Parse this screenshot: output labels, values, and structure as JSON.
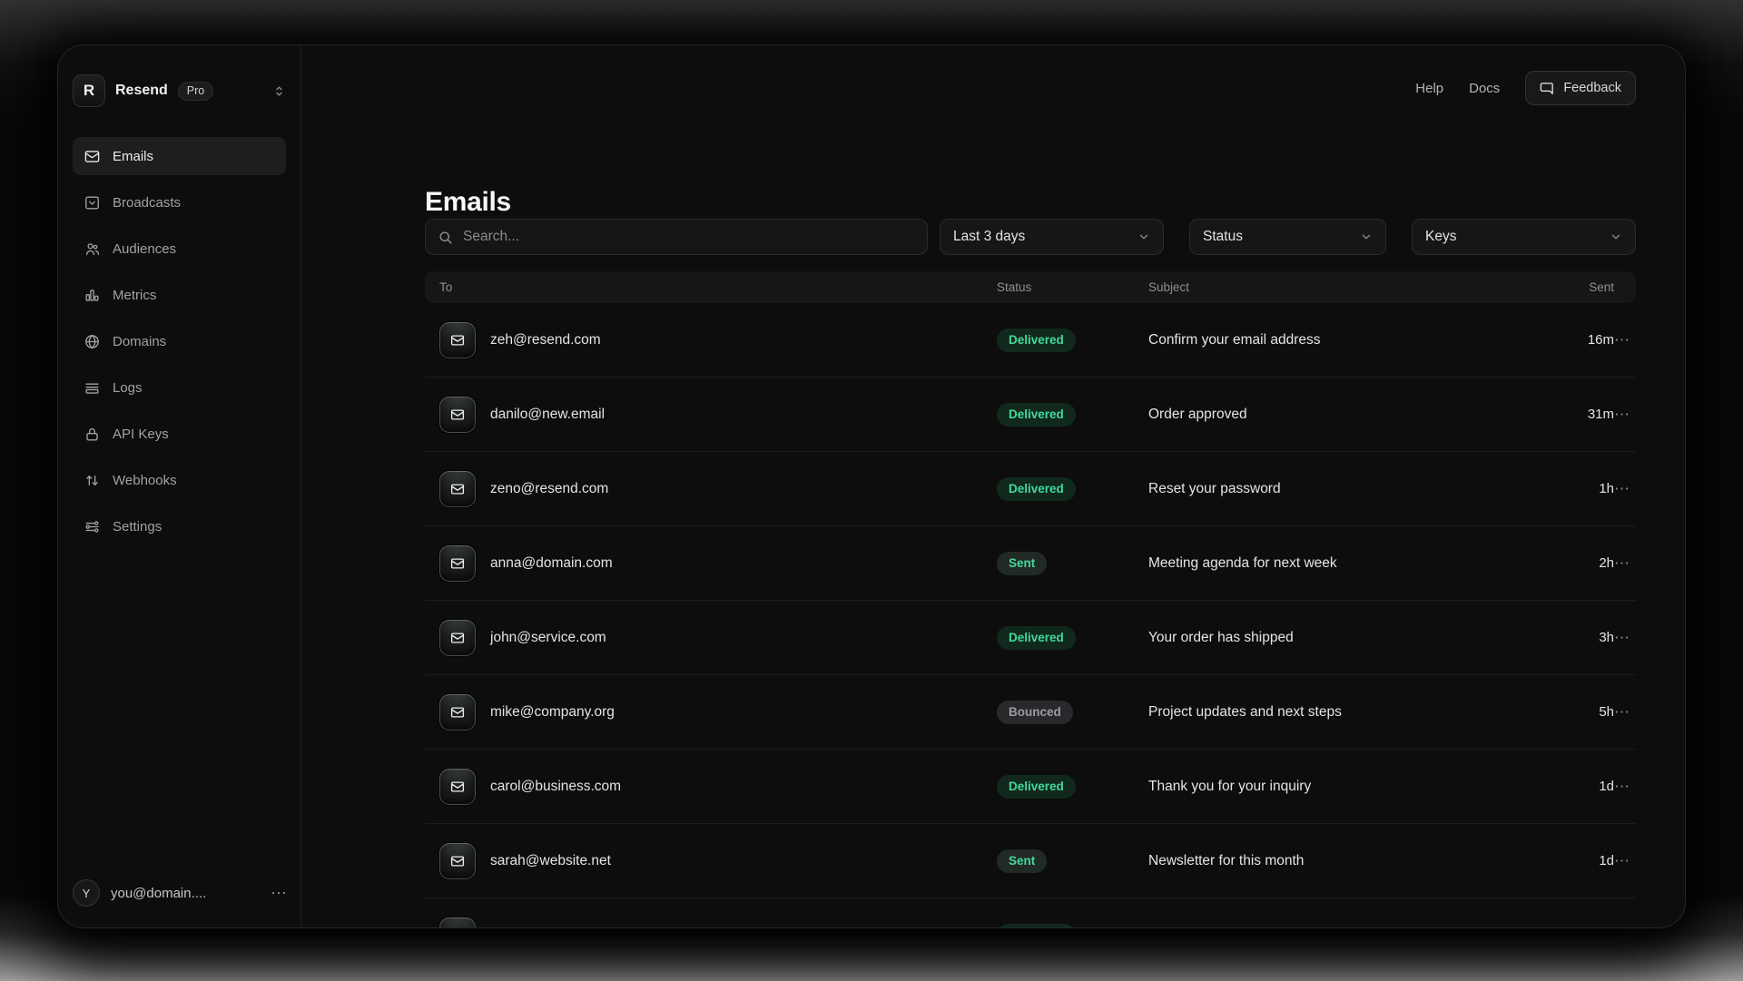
{
  "brand": {
    "logo_letter": "R",
    "name": "Resend",
    "plan_badge": "Pro",
    "selector_icon": "chevrons-up-down-icon"
  },
  "sidebar": {
    "items": [
      {
        "label": "Emails",
        "icon": "envelope-icon",
        "active": true
      },
      {
        "label": "Broadcasts",
        "icon": "inbox-icon",
        "active": false
      },
      {
        "label": "Audiences",
        "icon": "users-icon",
        "active": false
      },
      {
        "label": "Metrics",
        "icon": "bar-chart-icon",
        "active": false
      },
      {
        "label": "Domains",
        "icon": "globe-icon",
        "active": false
      },
      {
        "label": "Logs",
        "icon": "rows-icon",
        "active": false
      },
      {
        "label": "API Keys",
        "icon": "lock-icon",
        "active": false
      },
      {
        "label": "Webhooks",
        "icon": "arrows-up-down-icon",
        "active": false
      },
      {
        "label": "Settings",
        "icon": "sliders-icon",
        "active": false
      }
    ],
    "user": {
      "initial": "Y",
      "email": "you@domain....",
      "menu_icon": "ellipsis-icon"
    }
  },
  "topbar": {
    "links": [
      "Help",
      "Docs"
    ],
    "feedback_label": "Feedback",
    "feedback_icon": "chat-bubble-icon"
  },
  "page": {
    "title": "Emails"
  },
  "toolbar": {
    "search_placeholder": "Search...",
    "search_icon": "search-icon",
    "filters": [
      {
        "label": "Last 3 days"
      },
      {
        "label": "Status"
      },
      {
        "label": "Keys"
      }
    ]
  },
  "table": {
    "columns": {
      "to": "To",
      "status": "Status",
      "subject": "Subject",
      "sent": "Sent"
    },
    "row_icon": "envelope-icon",
    "row_menu_icon": "ellipsis-icon",
    "rows": [
      {
        "to": "zeh@resend.com",
        "status": "Delivered",
        "subject": "Confirm your email address",
        "sent": "16m"
      },
      {
        "to": "danilo@new.email",
        "status": "Delivered",
        "subject": "Order approved",
        "sent": "31m"
      },
      {
        "to": "zeno@resend.com",
        "status": "Delivered",
        "subject": "Reset your password",
        "sent": "1h"
      },
      {
        "to": "anna@domain.com",
        "status": "Sent",
        "subject": "Meeting agenda for next week",
        "sent": "2h"
      },
      {
        "to": "john@service.com",
        "status": "Delivered",
        "subject": "Your order has shipped",
        "sent": "3h"
      },
      {
        "to": "mike@company.org",
        "status": "Bounced",
        "subject": "Project updates and next steps",
        "sent": "5h"
      },
      {
        "to": "carol@business.com",
        "status": "Delivered",
        "subject": "Thank you for your inquiry",
        "sent": "1d"
      },
      {
        "to": "sarah@website.net",
        "status": "Sent",
        "subject": "Newsletter for this month",
        "sent": "1d"
      },
      {
        "to": "",
        "status": "Delivered",
        "subject": "",
        "sent": "",
        "partial": true
      }
    ]
  },
  "colors": {
    "accent_green": "#43d99a",
    "badge_delivered_bg": "#11291d",
    "badge_sent_bg": "#222a26",
    "badge_bounced_bg": "#29292c",
    "badge_bounced_text": "#9b9ba1",
    "window_bg": "#0d0d0d",
    "panel_bg": "#161616"
  }
}
